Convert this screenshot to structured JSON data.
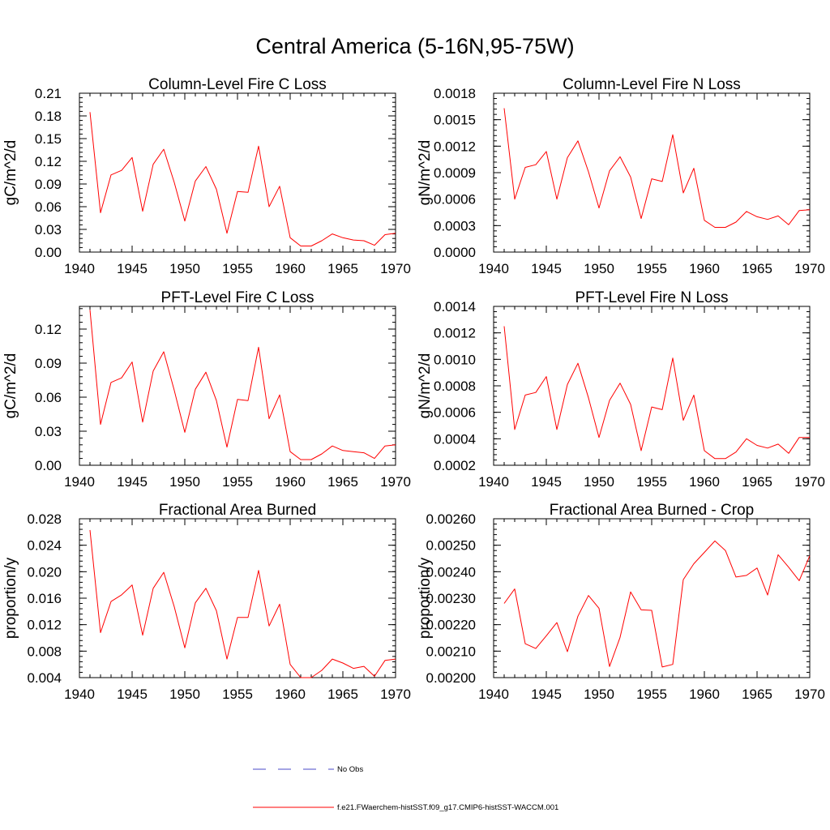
{
  "figure": {
    "title": "Central America (5-16N,95-75W)"
  },
  "legend": {
    "entries": [
      {
        "label": "No Obs",
        "color": "#4a4ac8",
        "dash": true
      },
      {
        "label": "f.e21.FWaerchem-histSST.f09_g17.CMIP6-histSST-WACCM.001",
        "color": "#ff0000",
        "dash": false
      }
    ]
  },
  "chart_data": [
    {
      "type": "line",
      "title": "Column-Level Fire C Loss",
      "xlabel": "",
      "ylabel": "gC/m^2/d",
      "xlim": [
        1940,
        1970
      ],
      "ylim": [
        0.0,
        0.21
      ],
      "xticks": [
        1940,
        1945,
        1950,
        1955,
        1960,
        1965,
        1970
      ],
      "xtick_labels": [
        "1940",
        "1945",
        "1950",
        "1955",
        "1960",
        "1965",
        "1970"
      ],
      "yticks": [
        0.0,
        0.03,
        0.06,
        0.09,
        0.12,
        0.15,
        0.18,
        0.21
      ],
      "ytick_labels": [
        "0.00",
        "0.03",
        "0.06",
        "0.09",
        "0.12",
        "0.15",
        "0.18",
        "0.21"
      ],
      "grid": false,
      "series": [
        {
          "color": "#ff0000",
          "x": [
            1941,
            1942,
            1943,
            1944,
            1945,
            1946,
            1947,
            1948,
            1949,
            1950,
            1951,
            1952,
            1953,
            1954,
            1955,
            1956,
            1957,
            1958,
            1959,
            1960,
            1961,
            1962,
            1963,
            1964,
            1965,
            1966,
            1967,
            1968,
            1969,
            1970
          ],
          "y": [
            0.185,
            0.052,
            0.102,
            0.108,
            0.125,
            0.054,
            0.116,
            0.136,
            0.092,
            0.041,
            0.094,
            0.113,
            0.083,
            0.025,
            0.08,
            0.079,
            0.14,
            0.06,
            0.087,
            0.019,
            0.008,
            0.008,
            0.015,
            0.024,
            0.019,
            0.016,
            0.015,
            0.009,
            0.023,
            0.025
          ]
        }
      ]
    },
    {
      "type": "line",
      "title": "Column-Level Fire N Loss",
      "xlabel": "",
      "ylabel": "gN/m^2/d",
      "xlim": [
        1940,
        1970
      ],
      "ylim": [
        0.0,
        0.0018
      ],
      "xticks": [
        1940,
        1945,
        1950,
        1955,
        1960,
        1965,
        1970
      ],
      "xtick_labels": [
        "1940",
        "1945",
        "1950",
        "1955",
        "1960",
        "1965",
        "1970"
      ],
      "yticks": [
        0.0,
        0.0003,
        0.0006,
        0.0009,
        0.0012,
        0.0015,
        0.0018
      ],
      "ytick_labels": [
        "0.0000",
        "0.0003",
        "0.0006",
        "0.0009",
        "0.0012",
        "0.0015",
        "0.0018"
      ],
      "grid": false,
      "series": [
        {
          "color": "#ff0000",
          "x": [
            1941,
            1942,
            1943,
            1944,
            1945,
            1946,
            1947,
            1948,
            1949,
            1950,
            1951,
            1952,
            1953,
            1954,
            1955,
            1956,
            1957,
            1958,
            1959,
            1960,
            1961,
            1962,
            1963,
            1964,
            1965,
            1966,
            1967,
            1968,
            1969,
            1970
          ],
          "y": [
            0.00163,
            0.0006,
            0.00096,
            0.00099,
            0.00114,
            0.0006,
            0.00107,
            0.00126,
            0.00091,
            0.0005,
            0.00092,
            0.00108,
            0.00085,
            0.00038,
            0.00083,
            0.0008,
            0.00133,
            0.00067,
            0.00095,
            0.00036,
            0.00028,
            0.00028,
            0.00034,
            0.00046,
            0.0004,
            0.00037,
            0.00041,
            0.00031,
            0.00047,
            0.00048
          ]
        }
      ]
    },
    {
      "type": "line",
      "title": "PFT-Level Fire C Loss",
      "xlabel": "",
      "ylabel": "gC/m^2/d",
      "xlim": [
        1940,
        1970
      ],
      "ylim": [
        0.0,
        0.14
      ],
      "xticks": [
        1940,
        1945,
        1950,
        1955,
        1960,
        1965,
        1970
      ],
      "xtick_labels": [
        "1940",
        "1945",
        "1950",
        "1955",
        "1960",
        "1965",
        "1970"
      ],
      "yticks": [
        0.0,
        0.03,
        0.06,
        0.09,
        0.12
      ],
      "ytick_labels": [
        "0.00",
        "0.03",
        "0.06",
        "0.09",
        "0.12"
      ],
      "grid": false,
      "series": [
        {
          "color": "#ff0000",
          "x": [
            1941,
            1942,
            1943,
            1944,
            1945,
            1946,
            1947,
            1948,
            1949,
            1950,
            1951,
            1952,
            1953,
            1954,
            1955,
            1956,
            1957,
            1958,
            1959,
            1960,
            1961,
            1962,
            1963,
            1964,
            1965,
            1966,
            1967,
            1968,
            1969,
            1970
          ],
          "y": [
            0.137,
            0.036,
            0.073,
            0.077,
            0.091,
            0.038,
            0.083,
            0.1,
            0.066,
            0.029,
            0.067,
            0.082,
            0.057,
            0.016,
            0.058,
            0.057,
            0.104,
            0.041,
            0.062,
            0.012,
            0.005,
            0.005,
            0.01,
            0.017,
            0.013,
            0.012,
            0.011,
            0.006,
            0.017,
            0.018
          ]
        }
      ]
    },
    {
      "type": "line",
      "title": "PFT-Level Fire N Loss",
      "xlabel": "",
      "ylabel": "gN/m^2/d",
      "xlim": [
        1940,
        1970
      ],
      "ylim": [
        0.0002,
        0.0014
      ],
      "xticks": [
        1940,
        1945,
        1950,
        1955,
        1960,
        1965,
        1970
      ],
      "xtick_labels": [
        "1940",
        "1945",
        "1950",
        "1955",
        "1960",
        "1965",
        "1970"
      ],
      "yticks": [
        0.0002,
        0.0004,
        0.0006,
        0.0008,
        0.001,
        0.0012,
        0.0014
      ],
      "ytick_labels": [
        "0.0002",
        "0.0004",
        "0.0006",
        "0.0008",
        "0.0010",
        "0.0012",
        "0.0014"
      ],
      "grid": false,
      "series": [
        {
          "color": "#ff0000",
          "x": [
            1941,
            1942,
            1943,
            1944,
            1945,
            1946,
            1947,
            1948,
            1949,
            1950,
            1951,
            1952,
            1953,
            1954,
            1955,
            1956,
            1957,
            1958,
            1959,
            1960,
            1961,
            1962,
            1963,
            1964,
            1965,
            1966,
            1967,
            1968,
            1969,
            1970
          ],
          "y": [
            0.00125,
            0.00047,
            0.00073,
            0.00075,
            0.00087,
            0.00047,
            0.00081,
            0.00097,
            0.00071,
            0.00041,
            0.00069,
            0.00082,
            0.00066,
            0.00031,
            0.00064,
            0.00062,
            0.00101,
            0.00054,
            0.00073,
            0.00031,
            0.00025,
            0.00025,
            0.0003,
            0.0004,
            0.00035,
            0.00033,
            0.00036,
            0.00029,
            0.00041,
            0.00041
          ]
        }
      ]
    },
    {
      "type": "line",
      "title": "Fractional Area Burned",
      "xlabel": "",
      "ylabel": "proportion/y",
      "xlim": [
        1940,
        1970
      ],
      "ylim": [
        0.004,
        0.028
      ],
      "xticks": [
        1940,
        1945,
        1950,
        1955,
        1960,
        1965,
        1970
      ],
      "xtick_labels": [
        "1940",
        "1945",
        "1950",
        "1955",
        "1960",
        "1965",
        "1970"
      ],
      "yticks": [
        0.004,
        0.008,
        0.012,
        0.016,
        0.02,
        0.024,
        0.028
      ],
      "ytick_labels": [
        "0.004",
        "0.008",
        "0.012",
        "0.016",
        "0.020",
        "0.024",
        "0.028"
      ],
      "grid": false,
      "series": [
        {
          "color": "#ff0000",
          "x": [
            1941,
            1942,
            1943,
            1944,
            1945,
            1946,
            1947,
            1948,
            1949,
            1950,
            1951,
            1952,
            1953,
            1954,
            1955,
            1956,
            1957,
            1958,
            1959,
            1960,
            1961,
            1962,
            1963,
            1964,
            1965,
            1966,
            1967,
            1968,
            1969,
            1970
          ],
          "y": [
            0.0263,
            0.0108,
            0.0155,
            0.0165,
            0.018,
            0.0104,
            0.0175,
            0.0199,
            0.0147,
            0.0085,
            0.0153,
            0.0175,
            0.0141,
            0.0068,
            0.0131,
            0.0131,
            0.0202,
            0.0118,
            0.0151,
            0.006,
            0.004,
            0.004,
            0.0051,
            0.0068,
            0.0062,
            0.0054,
            0.0057,
            0.0042,
            0.0066,
            0.0068
          ]
        }
      ]
    },
    {
      "type": "line",
      "title": "Fractional Area Burned - Crop",
      "xlabel": "",
      "ylabel": "proportion/y",
      "xlim": [
        1940,
        1970
      ],
      "ylim": [
        0.002,
        0.0026
      ],
      "xticks": [
        1940,
        1945,
        1950,
        1955,
        1960,
        1965,
        1970
      ],
      "xtick_labels": [
        "1940",
        "1945",
        "1950",
        "1955",
        "1960",
        "1965",
        "1970"
      ],
      "yticks": [
        0.002,
        0.0021,
        0.0022,
        0.0023,
        0.0024,
        0.0025,
        0.0026
      ],
      "ytick_labels": [
        "0.00200",
        "0.00210",
        "0.00220",
        "0.00230",
        "0.00240",
        "0.00250",
        "0.00260"
      ],
      "grid": false,
      "series": [
        {
          "color": "#ff0000",
          "x": [
            1941,
            1942,
            1943,
            1944,
            1945,
            1946,
            1947,
            1948,
            1949,
            1950,
            1951,
            1952,
            1953,
            1954,
            1955,
            1956,
            1957,
            1958,
            1959,
            1960,
            1961,
            1962,
            1963,
            1964,
            1965,
            1966,
            1967,
            1968,
            1969,
            1970
          ],
          "y": [
            0.00228,
            0.002335,
            0.002128,
            0.00211,
            0.002158,
            0.002208,
            0.002098,
            0.002232,
            0.00231,
            0.002262,
            0.002042,
            0.002152,
            0.002324,
            0.002256,
            0.002254,
            0.00204,
            0.00205,
            0.00237,
            0.00243,
            0.002473,
            0.002516,
            0.00248,
            0.00238,
            0.002386,
            0.002414,
            0.002312,
            0.002464,
            0.002417,
            0.002366,
            0.00246
          ]
        }
      ]
    }
  ]
}
